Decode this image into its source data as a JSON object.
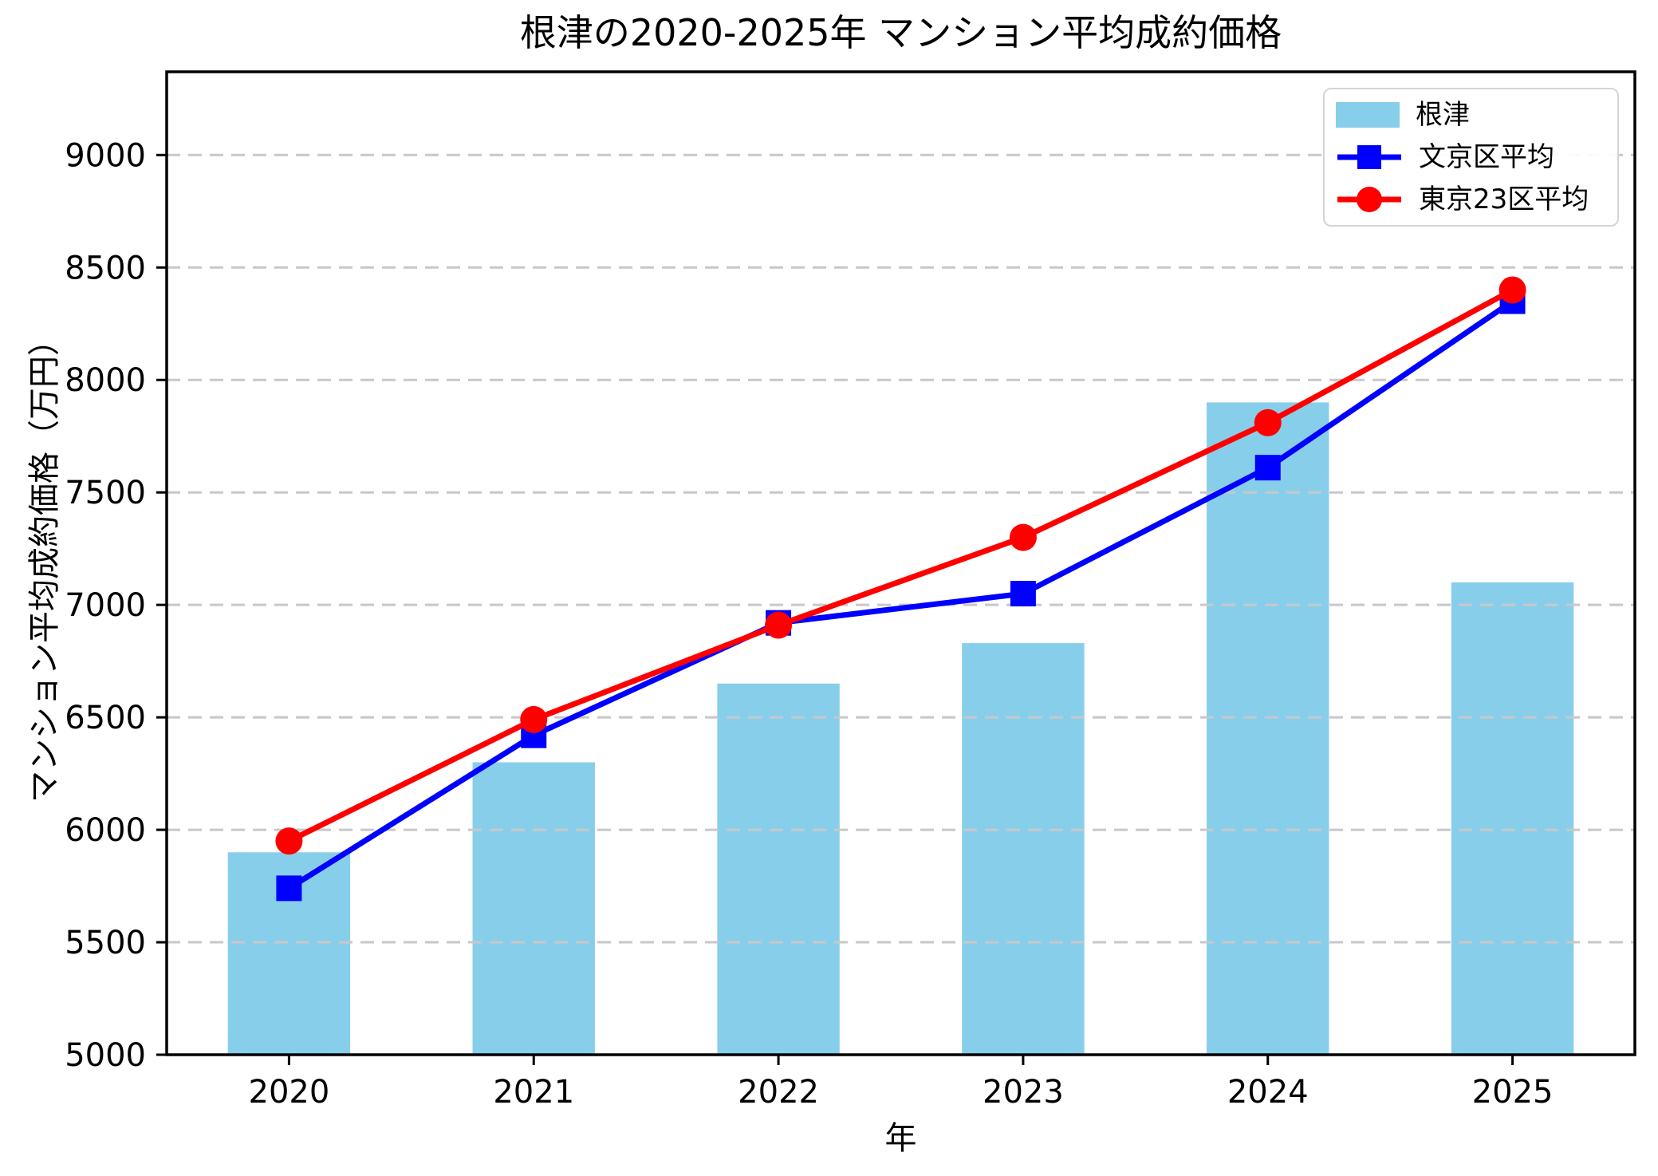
{
  "chart_data": {
    "type": "bar",
    "title": "根津の2020-2025年 マンション平均成約価格",
    "xlabel": "年",
    "ylabel": "マンション平均成約価格（万円）",
    "categories": [
      "2020",
      "2021",
      "2022",
      "2023",
      "2024",
      "2025"
    ],
    "bar_series": {
      "name": "根津",
      "color": "#87CEEB",
      "values": [
        5900,
        6300,
        6650,
        6830,
        7900,
        7100
      ],
      "bar_width_fraction": 0.5
    },
    "line_series": [
      {
        "name": "文京区平均",
        "color": "#0000FF",
        "marker": "square",
        "values": [
          5740,
          6420,
          6920,
          7050,
          7610,
          8350
        ]
      },
      {
        "name": "東京23区平均",
        "color": "#FF0000",
        "marker": "circle",
        "values": [
          5950,
          6490,
          6910,
          7300,
          7810,
          8400
        ]
      }
    ],
    "ylim": [
      5000,
      9370
    ],
    "yticks": [
      5000,
      5500,
      6000,
      6500,
      7000,
      7500,
      8000,
      8500,
      9000
    ],
    "grid": {
      "axis": "y",
      "style": "dashed",
      "color": "#c8c8c8"
    },
    "legend_position": "upper right",
    "axis_color": "#000000",
    "background": "#ffffff"
  }
}
